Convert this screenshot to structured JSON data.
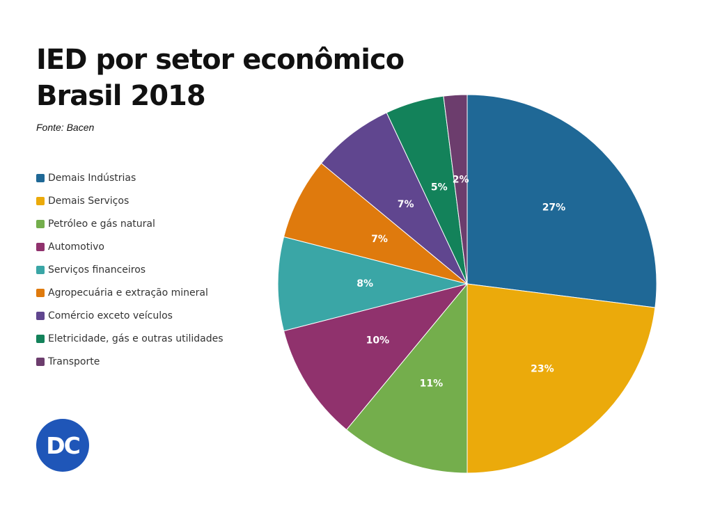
{
  "header": {
    "title_line1": "IED por setor econômico",
    "title_line2": "Brasil 2018",
    "source": "Fonte: Bacen"
  },
  "logo": {
    "text": "DC",
    "color": "#1f56b8"
  },
  "chart_data": {
    "type": "pie",
    "title": "IED por setor econômico Brasil 2018",
    "legend_position": "left",
    "label_color": "#ffffff",
    "slices": [
      {
        "label": "Demais Indústrias",
        "value": 27,
        "display": "27%",
        "color": "#1f6896"
      },
      {
        "label": "Demais Serviços",
        "value": 23,
        "display": "23%",
        "color": "#ebaa0b"
      },
      {
        "label": "Petróleo e gás natural",
        "value": 11,
        "display": "11%",
        "color": "#74ae4c"
      },
      {
        "label": "Automotivo",
        "value": 10,
        "display": "10%",
        "color": "#90326d"
      },
      {
        "label": "Serviços financeiros",
        "value": 8,
        "display": "8%",
        "color": "#3aa6a6"
      },
      {
        "label": "Agropecuária e extração mineral",
        "value": 7,
        "display": "7%",
        "color": "#df7a0d"
      },
      {
        "label": "Comércio exceto veículos",
        "value": 7,
        "display": "7%",
        "color": "#60468f"
      },
      {
        "label": "Eletricidade, gás e outras utilidades",
        "value": 5,
        "display": "5%",
        "color": "#13825a"
      },
      {
        "label": "Transporte",
        "value": 2,
        "display": "2%",
        "color": "#6c3d6d"
      }
    ]
  }
}
